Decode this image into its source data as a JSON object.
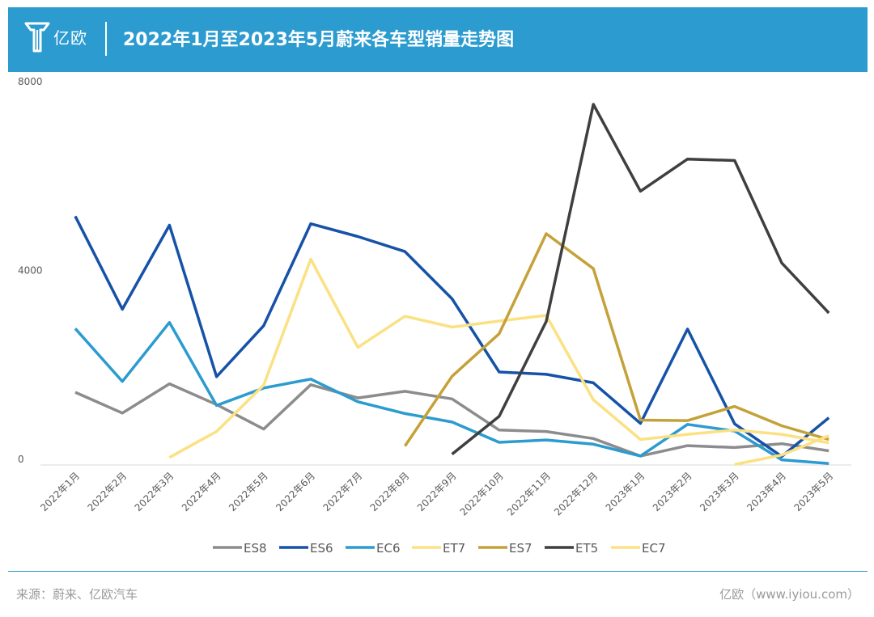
{
  "header": {
    "brand": "亿欧",
    "title": "2022年1月至2023年5月蔚来各车型销量走势图"
  },
  "footer": {
    "source": "来源：蔚来、亿欧汽车",
    "site": "亿欧（www.iyiou.com）"
  },
  "colors": {
    "header_bg": "#2b9bd0",
    "axis": "#d9d9d9",
    "tick_text": "#595959"
  },
  "chart_data": {
    "type": "line",
    "title": "",
    "xlabel": "",
    "ylabel": "",
    "ylim": [
      0,
      8000
    ],
    "yticks": [
      0,
      4000,
      8000
    ],
    "grid": false,
    "legend_position": "bottom",
    "categories": [
      "2022年1月",
      "2022年2月",
      "2022年3月",
      "2022年4月",
      "2022年5月",
      "2022年6月",
      "2022年7月",
      "2022年8月",
      "2022年9月",
      "2022年10月",
      "2022年11月",
      "2022年12月",
      "2023年1月",
      "2023年2月",
      "2023年3月",
      "2023年4月",
      "2023年5月"
    ],
    "series": [
      {
        "name": "ES8",
        "color": "#8c8c8c",
        "values": [
          1540,
          1100,
          1720,
          1280,
          760,
          1700,
          1420,
          1560,
          1400,
          740,
          710,
          560,
          190,
          410,
          370,
          450,
          300
        ]
      },
      {
        "name": "ES6",
        "color": "#1652a8",
        "values": [
          5270,
          3300,
          5080,
          1870,
          2950,
          5110,
          4840,
          4520,
          3520,
          1970,
          1920,
          1740,
          880,
          2880,
          870,
          180,
          1000
        ]
      },
      {
        "name": "EC6",
        "color": "#2b9bd0",
        "values": [
          2890,
          1770,
          3020,
          1260,
          1630,
          1820,
          1340,
          1090,
          910,
          480,
          530,
          440,
          190,
          860,
          720,
          110,
          30
        ]
      },
      {
        "name": "ET7",
        "color": "#fbe183",
        "values": [
          null,
          null,
          160,
          710,
          1690,
          4360,
          2490,
          3150,
          2920,
          3050,
          3170,
          1380,
          540,
          650,
          740,
          650,
          470
        ]
      },
      {
        "name": "ES7",
        "color": "#c4a239",
        "values": [
          null,
          null,
          null,
          null,
          null,
          null,
          null,
          400,
          1880,
          2780,
          4900,
          4160,
          950,
          940,
          1240,
          830,
          540
        ]
      },
      {
        "name": "ET5",
        "color": "#3f3f3f",
        "values": [
          null,
          null,
          null,
          null,
          null,
          null,
          null,
          null,
          230,
          1030,
          3040,
          7640,
          5800,
          6480,
          6450,
          4280,
          3220
        ]
      },
      {
        "name": "EC7",
        "color": "#fbe183",
        "values": [
          null,
          null,
          null,
          null,
          null,
          null,
          null,
          null,
          null,
          null,
          null,
          null,
          null,
          null,
          10,
          210,
          620
        ]
      }
    ]
  }
}
